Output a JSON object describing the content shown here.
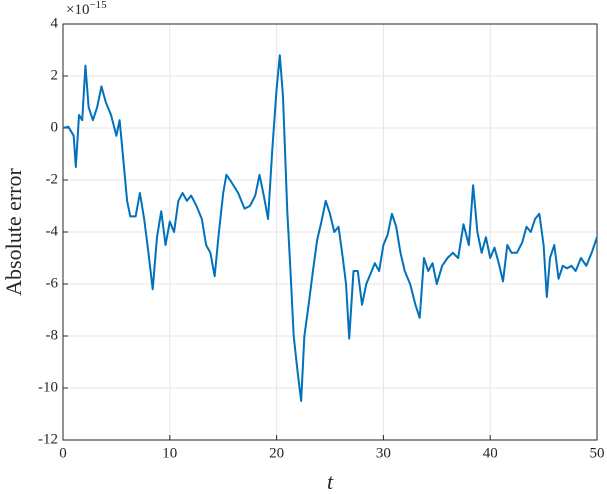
{
  "chart_data": {
    "type": "line",
    "xlabel": "t",
    "ylabel": "Absolute error",
    "y_multiplier": {
      "base": "×10",
      "exponent": "−15"
    },
    "x": [
      0,
      0.5,
      1,
      1.2,
      1.5,
      1.8,
      2.1,
      2.4,
      2.8,
      3.2,
      3.6,
      4,
      4.5,
      5,
      5.3,
      5.6,
      6,
      6.3,
      6.8,
      7.2,
      7.6,
      8,
      8.4,
      8.8,
      9.2,
      9.6,
      10,
      10.4,
      10.8,
      11.2,
      11.6,
      12,
      12.5,
      13,
      13.4,
      13.8,
      14.2,
      14.6,
      15,
      15.3,
      15.8,
      16.4,
      17,
      17.5,
      18,
      18.4,
      18.8,
      19.2,
      19.6,
      20,
      20.3,
      20.6,
      21,
      21.3,
      21.6,
      22,
      22.3,
      22.6,
      23,
      23.4,
      23.8,
      24.2,
      24.6,
      25,
      25.4,
      25.8,
      26.2,
      26.5,
      26.8,
      27.2,
      27.6,
      28,
      28.4,
      28.8,
      29.2,
      29.6,
      30,
      30.4,
      30.8,
      31.2,
      31.6,
      32,
      32.5,
      33,
      33.4,
      33.8,
      34.2,
      34.6,
      35,
      35.5,
      36,
      36.5,
      37,
      37.5,
      38,
      38.4,
      38.8,
      39.2,
      39.6,
      40,
      40.4,
      40.8,
      41.2,
      41.6,
      42,
      42.5,
      43,
      43.4,
      43.8,
      44.2,
      44.6,
      45,
      45.3,
      45.6,
      46,
      46.4,
      46.8,
      47.2,
      47.6,
      48,
      48.5,
      49,
      49.5,
      50
    ],
    "series": [
      {
        "name": "Absolute error",
        "color": "#0072bd",
        "values": [
          0,
          0.05,
          -0.3,
          -1.5,
          0.5,
          0.3,
          2.4,
          0.8,
          0.3,
          0.8,
          1.6,
          1.0,
          0.5,
          -0.3,
          0.3,
          -1.0,
          -2.8,
          -3.4,
          -3.4,
          -2.5,
          -3.5,
          -4.8,
          -6.2,
          -4.2,
          -3.2,
          -4.5,
          -3.6,
          -4.0,
          -2.8,
          -2.5,
          -2.8,
          -2.6,
          -3.0,
          -3.5,
          -4.5,
          -4.8,
          -5.7,
          -4.0,
          -2.5,
          -1.8,
          -2.1,
          -2.5,
          -3.1,
          -3.0,
          -2.6,
          -1.8,
          -2.6,
          -3.5,
          -0.8,
          1.5,
          2.8,
          1.2,
          -3.2,
          -5.5,
          -8.0,
          -9.5,
          -10.5,
          -8.0,
          -6.8,
          -5.5,
          -4.3,
          -3.6,
          -2.8,
          -3.3,
          -4.0,
          -3.8,
          -5.0,
          -6.0,
          -8.1,
          -5.5,
          -5.5,
          -6.8,
          -6.0,
          -5.6,
          -5.2,
          -5.5,
          -4.5,
          -4.1,
          -3.3,
          -3.8,
          -4.8,
          -5.5,
          -6.0,
          -6.8,
          -7.3,
          -5.0,
          -5.5,
          -5.2,
          -6.0,
          -5.3,
          -5.0,
          -4.8,
          -5.0,
          -3.7,
          -4.5,
          -2.2,
          -4.0,
          -4.8,
          -4.2,
          -5.0,
          -4.6,
          -5.2,
          -5.9,
          -4.5,
          -4.8,
          -4.8,
          -4.4,
          -3.8,
          -4.0,
          -3.5,
          -3.3,
          -4.5,
          -6.5,
          -5.0,
          -4.5,
          -5.8,
          -5.3,
          -5.4,
          -5.3,
          -5.5,
          -5.0,
          -5.3,
          -4.8,
          -4.2
        ]
      }
    ],
    "xlim": [
      0,
      50
    ],
    "xticks": [
      0,
      10,
      20,
      30,
      40,
      50
    ],
    "ylim": [
      -12,
      4
    ],
    "yticks": [
      -12,
      -10,
      -8,
      -6,
      -4,
      -2,
      0,
      2,
      4
    ],
    "grid": true
  }
}
